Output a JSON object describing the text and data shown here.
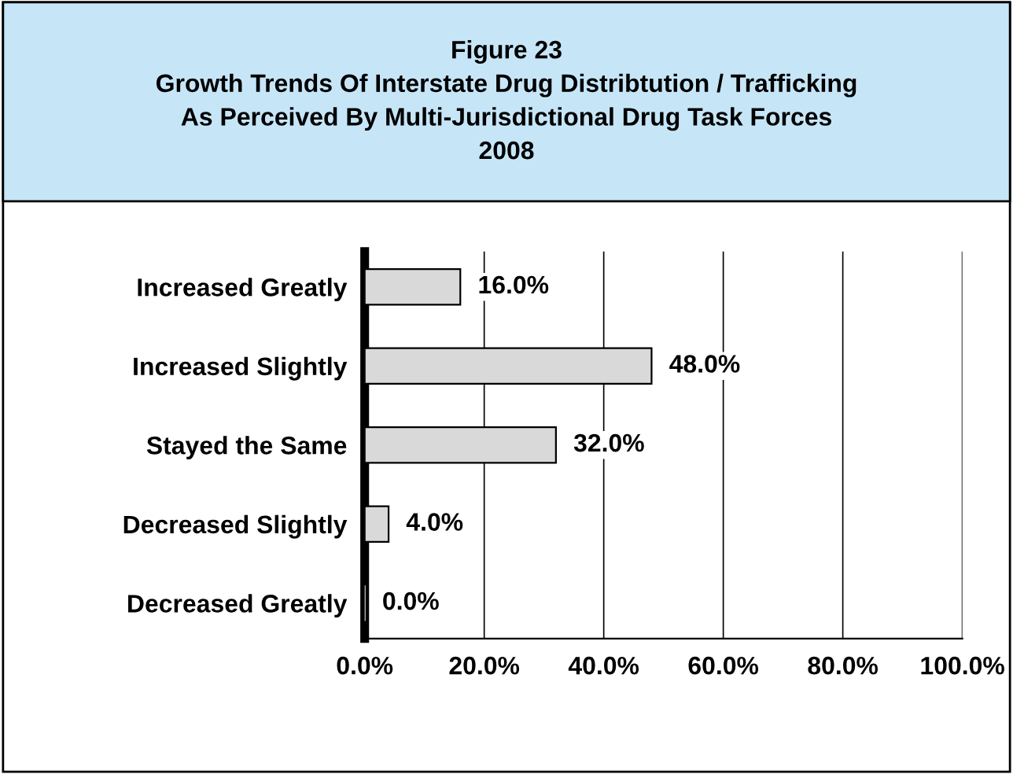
{
  "chart_data": {
    "type": "bar",
    "orientation": "horizontal",
    "title": "Figure 23\nGrowth Trends Of Interstate Drug Distribtution / Trafficking\nAs Perceived By Multi-Jurisdictional Drug Task Forces\n2008",
    "categories": [
      "Increased Greatly",
      "Increased Slightly",
      "Stayed the Same",
      "Decreased Slightly",
      "Decreased Greatly"
    ],
    "values": [
      16.0,
      48.0,
      32.0,
      4.0,
      0.0
    ],
    "color": "#d9d9d9",
    "value_labels": [
      "16.0%",
      "48.0%",
      "32.0%",
      "4.0%",
      "0.0%"
    ],
    "xlim": [
      0,
      100
    ],
    "xticks": [
      {
        "value": 0,
        "label": "0.0%"
      },
      {
        "value": 20,
        "label": "20.0%"
      },
      {
        "value": 40,
        "label": "40.0%"
      },
      {
        "value": 60,
        "label": "60.0%"
      },
      {
        "value": 80,
        "label": "80.0%"
      },
      {
        "value": 100,
        "label": "100.0%"
      }
    ],
    "grid": "x",
    "legend": false
  }
}
